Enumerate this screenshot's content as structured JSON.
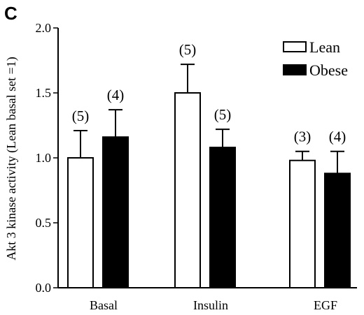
{
  "chart_data": {
    "panel_label": "C",
    "type": "bar",
    "ylabel": "Akt 3 kinase activity (Lean basal set =1)",
    "xlabel": "",
    "ylim": [
      0,
      2.0
    ],
    "yticks": [
      "0.0",
      "0.5",
      "1.0",
      "1.5",
      "2.0"
    ],
    "categories": [
      "Basal",
      "Insulin",
      "EGF"
    ],
    "legend_position": "top-right",
    "series": [
      {
        "name": "Lean",
        "fill": "#ffffff",
        "values": [
          1.0,
          1.5,
          0.98
        ],
        "errors": [
          0.21,
          0.22,
          0.07
        ],
        "n_labels": [
          "(5)",
          "(5)",
          "(3)"
        ]
      },
      {
        "name": "Obese",
        "fill": "#000000",
        "values": [
          1.16,
          1.08,
          0.88
        ],
        "errors": [
          0.21,
          0.14,
          0.17
        ],
        "n_labels": [
          "(4)",
          "(5)",
          "(4)"
        ]
      }
    ]
  }
}
